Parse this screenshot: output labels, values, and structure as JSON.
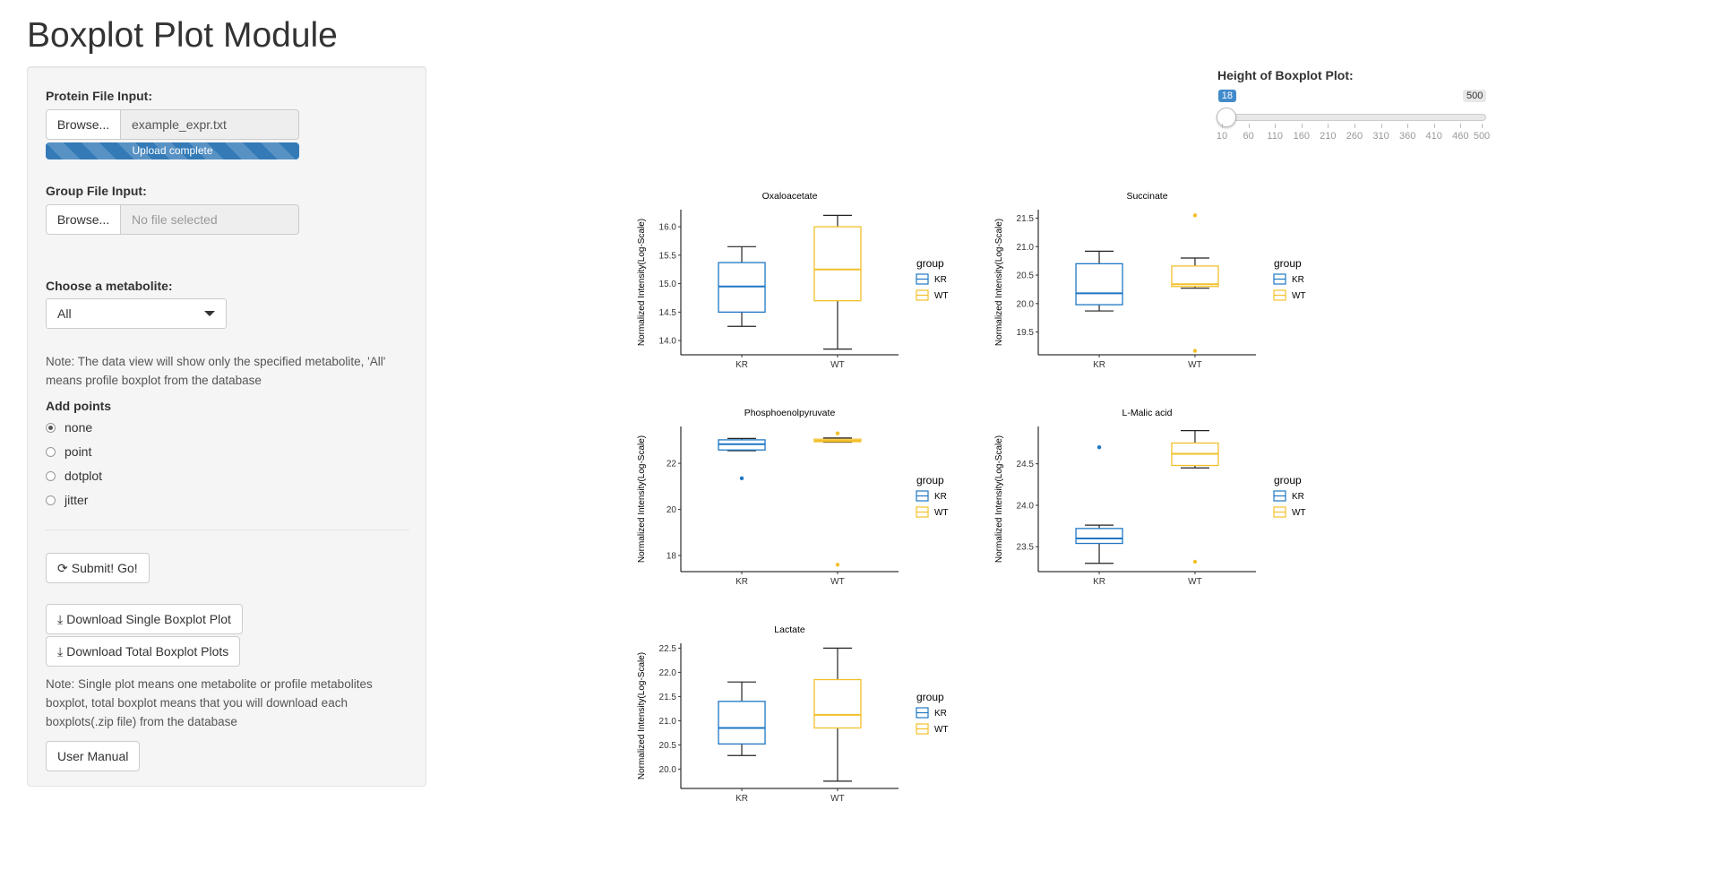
{
  "page": {
    "title": "Boxplot Plot Module"
  },
  "sidebar": {
    "protein_label": "Protein File Input:",
    "protein_browse": "Browse...",
    "protein_file": "example_expr.txt",
    "upload_status": "Upload complete",
    "group_label": "Group File Input:",
    "group_browse": "Browse...",
    "group_file_placeholder": "No file selected",
    "metabolite_label": "Choose a metabolite:",
    "metabolite_selected": "All",
    "note1": "Note: The data view will show only the specified metabolite, 'All' means profile boxplot from the database",
    "points_label": "Add points",
    "points_options": [
      "none",
      "point",
      "dotplot",
      "jitter"
    ],
    "points_selected": 0,
    "submit_label": "Submit! Go!",
    "download_single_label": "Download Single Boxplot Plot",
    "download_total_label": "Download Total Boxplot Plots",
    "note2": "Note: Single plot means one metabolite or profile metabolites boxplot, total boxplot means that you will download each boxplots(.zip file) from the database",
    "manual_label": "User Manual"
  },
  "slider": {
    "label": "Height of Boxplot Plot:",
    "min": 10,
    "max": 500,
    "value": 18,
    "min_label": "10",
    "max_label": "500",
    "value_label": "18",
    "ticks": [
      "10",
      "60",
      "110",
      "160",
      "210",
      "260",
      "310",
      "360",
      "410",
      "460",
      "500"
    ]
  },
  "colors": {
    "KR": "#1f77c4",
    "WT": "#f2c02b",
    "accent": "#428bca"
  },
  "chart_data": [
    {
      "type": "boxplot",
      "title": "Oxaloacetate",
      "ylabel": "Normalized Intensity(Log-Scale)",
      "categories": [
        "KR",
        "WT"
      ],
      "ylim": [
        13.75,
        16.3
      ],
      "yticks": [
        14.0,
        14.5,
        15.0,
        15.5,
        16.0
      ],
      "ytick_labels": [
        "14.0",
        "14.5",
        "15.0",
        "15.5",
        "16.0"
      ],
      "series": [
        {
          "name": "KR",
          "min": 14.25,
          "q1": 14.5,
          "median": 14.95,
          "q3": 15.37,
          "max": 15.65,
          "outliers": []
        },
        {
          "name": "WT",
          "min": 13.85,
          "q1": 14.7,
          "median": 15.25,
          "q3": 16.0,
          "max": 16.2,
          "outliers": []
        }
      ],
      "legend": {
        "title": "group",
        "entries": [
          "KR",
          "WT"
        ],
        "position": "right"
      }
    },
    {
      "type": "boxplot",
      "title": "Succinate",
      "ylabel": "Normalized Intensity(Log-Scale)",
      "categories": [
        "KR",
        "WT"
      ],
      "ylim": [
        19.1,
        21.65
      ],
      "yticks": [
        19.5,
        20.0,
        20.5,
        21.0,
        21.5
      ],
      "ytick_labels": [
        "19.5",
        "20.0",
        "20.5",
        "21.0",
        "21.5"
      ],
      "series": [
        {
          "name": "KR",
          "min": 19.87,
          "q1": 19.98,
          "median": 20.18,
          "q3": 20.7,
          "max": 20.92,
          "outliers": []
        },
        {
          "name": "WT",
          "min": 20.27,
          "q1": 20.3,
          "median": 20.34,
          "q3": 20.66,
          "max": 20.8,
          "outliers": [
            21.55,
            19.17
          ]
        }
      ],
      "legend": {
        "title": "group",
        "entries": [
          "KR",
          "WT"
        ],
        "position": "right"
      }
    },
    {
      "type": "boxplot",
      "title": "Phosphoenolpyruvate",
      "ylabel": "Normalized Intensity(Log-Scale)",
      "categories": [
        "KR",
        "WT"
      ],
      "ylim": [
        17.3,
        23.6
      ],
      "yticks": [
        18,
        20,
        22
      ],
      "ytick_labels": [
        "18",
        "20",
        "22"
      ],
      "series": [
        {
          "name": "KR",
          "min": 22.55,
          "q1": 22.58,
          "median": 22.83,
          "q3": 23.02,
          "max": 23.08,
          "outliers": [
            21.35
          ]
        },
        {
          "name": "WT",
          "min": 22.92,
          "q1": 22.94,
          "median": 22.98,
          "q3": 23.05,
          "max": 23.1,
          "outliers": [
            23.3,
            17.6
          ]
        }
      ],
      "legend": {
        "title": "group",
        "entries": [
          "KR",
          "WT"
        ],
        "position": "right"
      }
    },
    {
      "type": "boxplot",
      "title": "L-Malic acid",
      "ylabel": "Normalized Intensity(Log-Scale)",
      "categories": [
        "KR",
        "WT"
      ],
      "ylim": [
        23.2,
        24.95
      ],
      "yticks": [
        23.5,
        24.0,
        24.5
      ],
      "ytick_labels": [
        "23.5",
        "24.0",
        "24.5"
      ],
      "series": [
        {
          "name": "KR",
          "min": 23.3,
          "q1": 23.54,
          "median": 23.6,
          "q3": 23.72,
          "max": 23.76,
          "outliers": [
            24.7
          ]
        },
        {
          "name": "WT",
          "min": 24.45,
          "q1": 24.48,
          "median": 24.62,
          "q3": 24.75,
          "max": 24.9,
          "outliers": [
            23.32
          ]
        }
      ],
      "legend": {
        "title": "group",
        "entries": [
          "KR",
          "WT"
        ],
        "position": "right"
      }
    },
    {
      "type": "boxplot",
      "title": "Lactate",
      "ylabel": "Normalized Intensity(Log-Scale)",
      "categories": [
        "KR",
        "WT"
      ],
      "ylim": [
        19.6,
        22.6
      ],
      "yticks": [
        20.0,
        20.5,
        21.0,
        21.5,
        22.0,
        22.5
      ],
      "ytick_labels": [
        "20.0",
        "20.5",
        "21.0",
        "21.5",
        "22.0",
        "22.5"
      ],
      "series": [
        {
          "name": "KR",
          "min": 20.28,
          "q1": 20.52,
          "median": 20.85,
          "q3": 21.4,
          "max": 21.8,
          "outliers": []
        },
        {
          "name": "WT",
          "min": 19.75,
          "q1": 20.85,
          "median": 21.12,
          "q3": 21.85,
          "max": 22.5,
          "outliers": []
        }
      ],
      "legend": {
        "title": "group",
        "entries": [
          "KR",
          "WT"
        ],
        "position": "right"
      }
    }
  ]
}
